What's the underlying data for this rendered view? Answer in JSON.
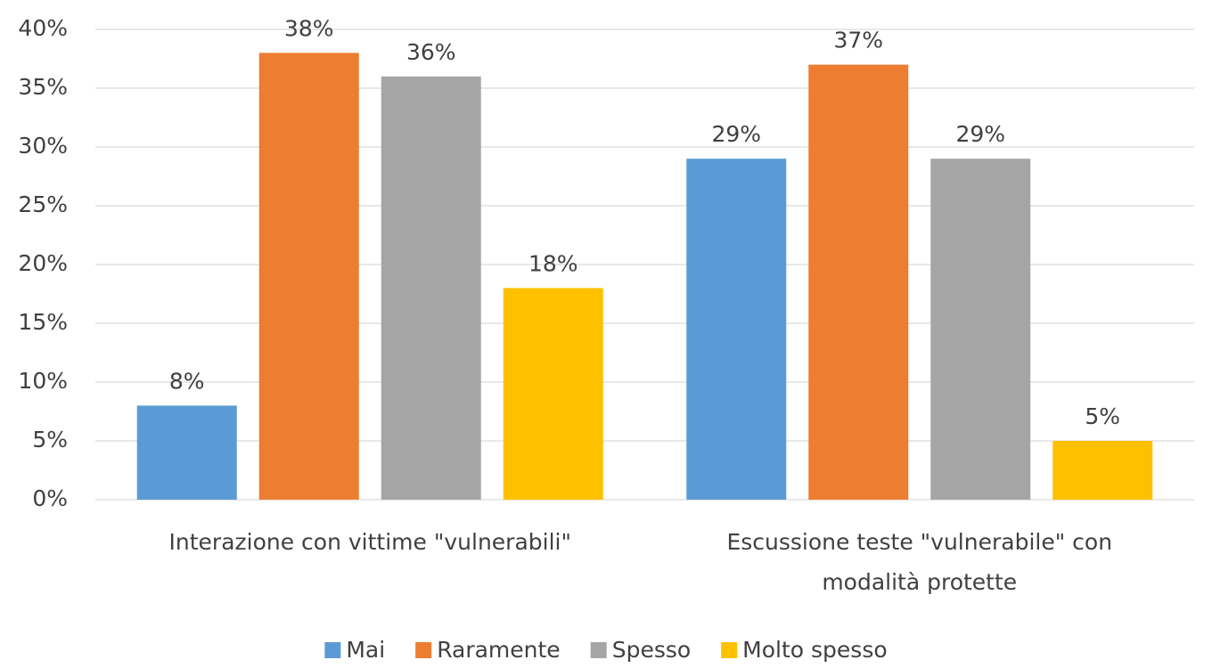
{
  "chart_data": {
    "type": "bar",
    "categories": [
      "Interazione con vittime \"vulnerabili\"",
      "Escussione teste \"vulnerabile\" con modalità protette"
    ],
    "series": [
      {
        "name": "Mai",
        "color": "#5b9bd5",
        "values": [
          8,
          29
        ],
        "value_labels": [
          "8%",
          "29%"
        ]
      },
      {
        "name": "Raramente",
        "color": "#ed7d31",
        "values": [
          38,
          37
        ],
        "value_labels": [
          "38%",
          "37%"
        ]
      },
      {
        "name": "Spesso",
        "color": "#a5a5a5",
        "values": [
          36,
          29
        ],
        "value_labels": [
          "36%",
          "29%"
        ]
      },
      {
        "name": "Molto spesso",
        "color": "#ffc000",
        "values": [
          18,
          5
        ],
        "value_labels": [
          "18%",
          "5%"
        ]
      }
    ],
    "ylim": [
      0,
      40
    ],
    "yticks": [
      {
        "value": 0,
        "label": "0%"
      },
      {
        "value": 5,
        "label": "5%"
      },
      {
        "value": 10,
        "label": "10%"
      },
      {
        "value": 15,
        "label": "15%"
      },
      {
        "value": 20,
        "label": "20%"
      },
      {
        "value": 25,
        "label": "25%"
      },
      {
        "value": 30,
        "label": "30%"
      },
      {
        "value": 35,
        "label": "35%"
      },
      {
        "value": 40,
        "label": "40%"
      }
    ],
    "grid": true,
    "legend": "bottom"
  }
}
